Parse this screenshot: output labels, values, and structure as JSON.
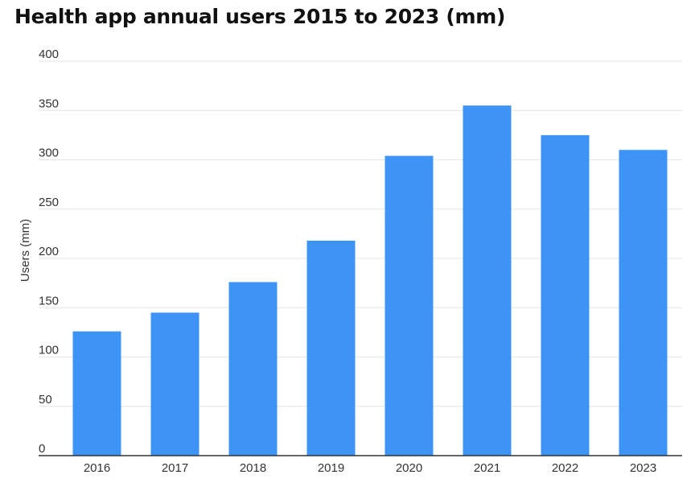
{
  "chart_data": {
    "type": "bar",
    "title": "Health app annual users 2015 to 2023 (mm)",
    "xlabel": "",
    "ylabel": "Users (mm)",
    "categories": [
      "2016",
      "2017",
      "2018",
      "2019",
      "2020",
      "2021",
      "2022",
      "2023"
    ],
    "values": [
      126,
      145,
      176,
      218,
      304,
      355,
      325,
      310
    ],
    "ylim": [
      0,
      400
    ],
    "yticks": [
      0,
      50,
      100,
      150,
      200,
      250,
      300,
      350,
      400
    ],
    "grid": true,
    "legend": "none",
    "colors": {
      "bar": "#3d94f6",
      "grid": "#e6e6e6",
      "axis": "#333333"
    }
  }
}
